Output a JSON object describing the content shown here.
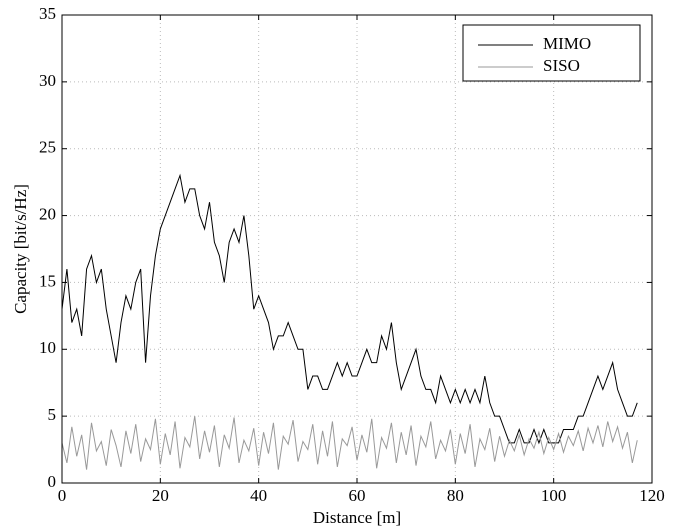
{
  "chart_data": {
    "type": "line",
    "xlabel": "Distance [m]",
    "ylabel": "Capacity [bit/s/Hz]",
    "x": [
      0,
      1,
      2,
      3,
      4,
      5,
      6,
      7,
      8,
      9,
      10,
      11,
      12,
      13,
      14,
      15,
      16,
      17,
      18,
      19,
      20,
      21,
      22,
      23,
      24,
      25,
      26,
      27,
      28,
      29,
      30,
      31,
      32,
      33,
      34,
      35,
      36,
      37,
      38,
      39,
      40,
      41,
      42,
      43,
      44,
      45,
      46,
      47,
      48,
      49,
      50,
      51,
      52,
      53,
      54,
      55,
      56,
      57,
      58,
      59,
      60,
      61,
      62,
      63,
      64,
      65,
      66,
      67,
      68,
      69,
      70,
      71,
      72,
      73,
      74,
      75,
      76,
      77,
      78,
      79,
      80,
      81,
      82,
      83,
      84,
      85,
      86,
      87,
      88,
      89,
      90,
      91,
      92,
      93,
      94,
      95,
      96,
      97,
      98,
      99,
      100,
      101,
      102,
      103,
      104,
      105,
      106,
      107,
      108,
      109,
      110,
      111,
      112,
      113,
      114,
      115,
      116,
      117
    ],
    "series": [
      {
        "name": "MIMO",
        "color": "#000000",
        "values": [
          13,
          16,
          12,
          13,
          11,
          16,
          17,
          15,
          16,
          13,
          11,
          9,
          12,
          14,
          13,
          15,
          16,
          9,
          14,
          17,
          19,
          20,
          21,
          22,
          23,
          21,
          22,
          22,
          20,
          19,
          21,
          18,
          17,
          15,
          18,
          19,
          18,
          20,
          17,
          13,
          14,
          13,
          12,
          10,
          11,
          11,
          12,
          11,
          10,
          10,
          7,
          8,
          8,
          7,
          7,
          8,
          9,
          8,
          9,
          8,
          8,
          9,
          10,
          9,
          9,
          11,
          10,
          12,
          9,
          7,
          8,
          9,
          10,
          8,
          7,
          7,
          6,
          8,
          7,
          6,
          7,
          6,
          7,
          6,
          7,
          6,
          8,
          6,
          5,
          5,
          4,
          3,
          3,
          4,
          3,
          3,
          4,
          3,
          4,
          3,
          3,
          3,
          4,
          4,
          4,
          5,
          5,
          6,
          7,
          8,
          7,
          8,
          9,
          7,
          6,
          5,
          5,
          6
        ]
      },
      {
        "name": "SISO",
        "color": "#999999",
        "values": [
          3,
          1.5,
          4.2,
          2,
          3.6,
          1,
          4.5,
          2.4,
          3.1,
          1.3,
          4,
          2.8,
          1.2,
          3.9,
          2.2,
          4.4,
          1.6,
          3.3,
          2.5,
          4.8,
          1.4,
          3.7,
          2.1,
          4.6,
          1.1,
          3.4,
          2.7,
          5,
          1.8,
          3.9,
          2.3,
          4.3,
          1.2,
          3.6,
          2.6,
          4.9,
          1.5,
          3.2,
          2.4,
          4.1,
          1.3,
          3.8,
          2.2,
          4.5,
          1,
          3.5,
          2.9,
          4.7,
          1.6,
          3.1,
          2.5,
          4.4,
          1.4,
          3.9,
          2,
          4.6,
          1.2,
          3.3,
          2.8,
          4.2,
          1.7,
          3.6,
          2.3,
          4.8,
          1.1,
          3.4,
          2.6,
          4.5,
          1.5,
          3.8,
          2.1,
          4.3,
          1.3,
          3.5,
          2.7,
          4.6,
          1.8,
          3.2,
          2.4,
          4,
          1.4,
          3.7,
          2.2,
          4.4,
          1.2,
          3.3,
          2.5,
          4.1,
          1.6,
          3.5,
          2,
          3.2,
          2.4,
          3.6,
          2.1,
          3.3,
          2.6,
          3.8,
          2.2,
          3.4,
          2.5,
          3.7,
          2.3,
          3.5,
          2.8,
          3.9,
          2.4,
          4.1,
          3,
          4.3,
          2.7,
          4.6,
          3.1,
          4.2,
          2.6,
          3.8,
          1.5,
          3.2
        ]
      }
    ],
    "xlim": [
      0,
      120
    ],
    "xticks": [
      0,
      20,
      40,
      60,
      80,
      100,
      120
    ],
    "ylim": [
      0,
      35
    ],
    "yticks": [
      0,
      5,
      10,
      15,
      20,
      25,
      30,
      35
    ],
    "grid": true,
    "legend": "upper right"
  }
}
